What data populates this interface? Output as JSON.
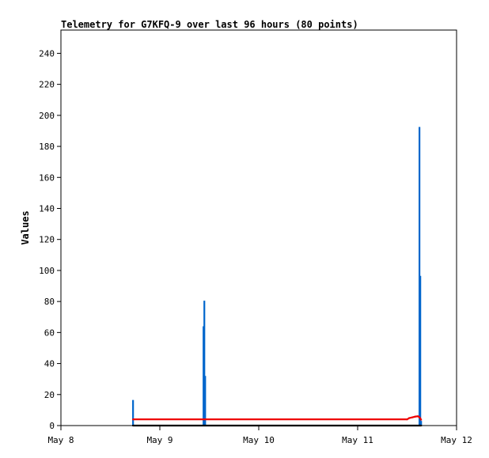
{
  "chart_data": {
    "type": "line",
    "title": "Telemetry for G7KFQ-9 over last 96 hours (80 points)",
    "ylabel": "Values",
    "xlabel": "",
    "x_ticks": [
      {
        "label": "May 8",
        "value": 0
      },
      {
        "label": "May 9",
        "value": 24
      },
      {
        "label": "May 10",
        "value": 48
      },
      {
        "label": "May 11",
        "value": 72
      },
      {
        "label": "May 12",
        "value": 96
      }
    ],
    "xlim": [
      0,
      96
    ],
    "ylim": [
      0,
      255
    ],
    "y_ticks": [
      0,
      20,
      40,
      60,
      80,
      100,
      120,
      140,
      160,
      180,
      200,
      220,
      240
    ],
    "grid": false,
    "colors": {
      "blue": "#0066cc",
      "red": "#ee0000",
      "black": "#000000"
    },
    "series": [
      {
        "color": "#0066cc",
        "style": "spike",
        "points": [
          {
            "x": 17.5,
            "y": 16.5
          },
          {
            "x": 34.6,
            "y": 64
          },
          {
            "x": 34.8,
            "y": 80.5
          },
          {
            "x": 35.0,
            "y": 32
          },
          {
            "x": 87.0,
            "y": 192.5
          },
          {
            "x": 87.2,
            "y": 96.5
          },
          {
            "x": 87.4,
            "y": 3
          }
        ]
      },
      {
        "color": "#ee0000",
        "style": "line",
        "points": [
          {
            "x": 17.5,
            "y": 4
          },
          {
            "x": 34.6,
            "y": 4
          },
          {
            "x": 84.0,
            "y": 4
          },
          {
            "x": 84.5,
            "y": 4.8
          },
          {
            "x": 85.3,
            "y": 5.3
          },
          {
            "x": 86.0,
            "y": 5.8
          },
          {
            "x": 86.6,
            "y": 6
          },
          {
            "x": 87.0,
            "y": 5.4
          },
          {
            "x": 87.4,
            "y": 3.8
          }
        ]
      },
      {
        "color": "#000000",
        "style": "line",
        "points": [
          {
            "x": 17.5,
            "y": 0
          },
          {
            "x": 87.4,
            "y": 0
          }
        ]
      }
    ]
  }
}
